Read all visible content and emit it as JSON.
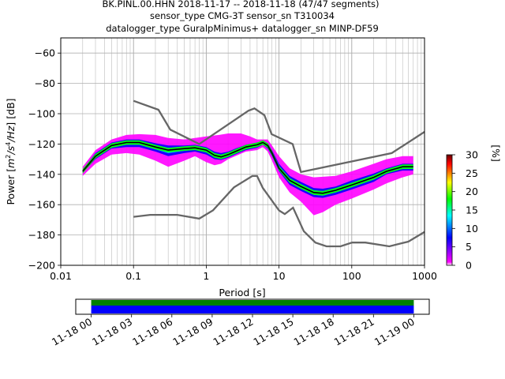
{
  "title_lines": [
    "BK.PINL.00.HHN   2018-11-17 -- 2018-11-18  (47/47 segments)",
    "sensor_type CMG-3T sensor_sn T310034",
    "datalogger_type GuralpMinimus+ datalogger_sn MINP-DF59"
  ],
  "chart_data": {
    "type": "heatmap",
    "title": "BK.PINL.00.HHN   2018-11-17 -- 2018-11-18  (47/47 segments)",
    "xlabel": "Period [s]",
    "ylabel_parts": {
      "pre": "Power [",
      "m": "m",
      "e2": "2",
      "s": "/s",
      "e4": "4",
      "hz": "/Hz",
      "post": "] [dB]"
    },
    "x_scale": "log",
    "xlim": [
      0.01,
      1000
    ],
    "ylim": [
      -200,
      -50
    ],
    "x_ticks": [
      {
        "v": 0.01,
        "label": "0.01"
      },
      {
        "v": 0.1,
        "label": "0.1"
      },
      {
        "v": 1,
        "label": "1"
      },
      {
        "v": 10,
        "label": "10"
      },
      {
        "v": 100,
        "label": "100"
      },
      {
        "v": 1000,
        "label": "1000"
      }
    ],
    "y_ticks": [
      {
        "v": -60,
        "label": "−60"
      },
      {
        "v": -80,
        "label": "−80"
      },
      {
        "v": -100,
        "label": "−100"
      },
      {
        "v": -120,
        "label": "−120"
      },
      {
        "v": -140,
        "label": "−140"
      },
      {
        "v": -160,
        "label": "−160"
      },
      {
        "v": -180,
        "label": "−180"
      },
      {
        "v": -200,
        "label": "−200"
      }
    ],
    "grid": true,
    "colorbar": {
      "label": "[%]",
      "range": [
        0,
        30
      ],
      "ticks": [
        {
          "v": 0,
          "label": "0"
        },
        {
          "v": 5,
          "label": "5"
        },
        {
          "v": 10,
          "label": "10"
        },
        {
          "v": 15,
          "label": "15"
        },
        {
          "v": 20,
          "label": "20"
        },
        {
          "v": 25,
          "label": "25"
        },
        {
          "v": 30,
          "label": "30"
        }
      ],
      "colors": [
        "#ffffff",
        "#ff00ff",
        "#0000ff",
        "#00ffff",
        "#00ff00",
        "#ffff00",
        "#ff0000",
        "#660000"
      ]
    },
    "noise_models": {
      "color": "#666666",
      "nhnm": [
        [
          0.1,
          -91.5
        ],
        [
          0.22,
          -97.4
        ],
        [
          0.32,
          -110.5
        ],
        [
          0.8,
          -120
        ],
        [
          3.8,
          -98
        ],
        [
          4.6,
          -96.5
        ],
        [
          6.3,
          -101
        ],
        [
          7.9,
          -113.5
        ],
        [
          15.4,
          -120
        ],
        [
          20,
          -138.5
        ],
        [
          354.8,
          -126
        ],
        [
          1000,
          -112
        ]
      ],
      "nlnm": [
        [
          0.1,
          -168
        ],
        [
          0.17,
          -166.7
        ],
        [
          0.4,
          -166.7
        ],
        [
          0.8,
          -169.2
        ],
        [
          1.24,
          -163.7
        ],
        [
          2.4,
          -148.6
        ],
        [
          4.3,
          -141.1
        ],
        [
          5,
          -141.1
        ],
        [
          6,
          -149
        ],
        [
          10,
          -163.8
        ],
        [
          12,
          -166.2
        ],
        [
          15.6,
          -162
        ],
        [
          21.9,
          -177.5
        ],
        [
          31.6,
          -185
        ],
        [
          45,
          -187.5
        ],
        [
          70,
          -187.5
        ],
        [
          101,
          -185
        ],
        [
          154,
          -185
        ],
        [
          328,
          -187.5
        ],
        [
          600,
          -184.4
        ],
        [
          1000,
          -178
        ]
      ]
    },
    "psd_mode": {
      "color": "#000000",
      "points": [
        [
          0.02,
          -138
        ],
        [
          0.03,
          -128
        ],
        [
          0.05,
          -121
        ],
        [
          0.08,
          -119
        ],
        [
          0.12,
          -119
        ],
        [
          0.2,
          -122
        ],
        [
          0.3,
          -124
        ],
        [
          0.5,
          -123
        ],
        [
          0.7,
          -122.5
        ],
        [
          1.0,
          -124
        ],
        [
          1.3,
          -127.5
        ],
        [
          1.6,
          -128.5
        ],
        [
          2.0,
          -127
        ],
        [
          2.5,
          -125
        ],
        [
          3.5,
          -122
        ],
        [
          5,
          -120.5
        ],
        [
          6,
          -119
        ],
        [
          7,
          -121
        ],
        [
          8,
          -126
        ],
        [
          10,
          -136
        ],
        [
          14,
          -144
        ],
        [
          20,
          -148
        ],
        [
          30,
          -152
        ],
        [
          40,
          -152.5
        ],
        [
          60,
          -150.5
        ],
        [
          100,
          -147
        ],
        [
          200,
          -142
        ],
        [
          300,
          -138
        ],
        [
          500,
          -135
        ],
        [
          700,
          -135
        ]
      ]
    },
    "density": {
      "upper_envelope": [
        [
          0.02,
          -135
        ],
        [
          0.03,
          -124
        ],
        [
          0.05,
          -117
        ],
        [
          0.08,
          -114
        ],
        [
          0.12,
          -113.5
        ],
        [
          0.2,
          -114
        ],
        [
          0.3,
          -116
        ],
        [
          0.5,
          -117
        ],
        [
          0.7,
          -116
        ],
        [
          1.0,
          -115
        ],
        [
          1.5,
          -114
        ],
        [
          2.0,
          -113
        ],
        [
          3,
          -113
        ],
        [
          4,
          -115
        ],
        [
          5,
          -117
        ],
        [
          6,
          -117
        ],
        [
          7,
          -117
        ],
        [
          8,
          -121
        ],
        [
          10,
          -128
        ],
        [
          14,
          -136
        ],
        [
          20,
          -140
        ],
        [
          30,
          -142
        ],
        [
          60,
          -141
        ],
        [
          100,
          -138
        ],
        [
          200,
          -133
        ],
        [
          300,
          -130
        ],
        [
          500,
          -128
        ],
        [
          700,
          -128
        ]
      ],
      "lower_envelope": [
        [
          0.02,
          -141
        ],
        [
          0.03,
          -133
        ],
        [
          0.05,
          -127
        ],
        [
          0.08,
          -126
        ],
        [
          0.12,
          -127
        ],
        [
          0.2,
          -131
        ],
        [
          0.3,
          -135
        ],
        [
          0.5,
          -131
        ],
        [
          0.7,
          -128
        ],
        [
          1.0,
          -132
        ],
        [
          1.3,
          -134
        ],
        [
          1.6,
          -133
        ],
        [
          2.0,
          -130
        ],
        [
          2.5,
          -128
        ],
        [
          3.5,
          -125
        ],
        [
          5,
          -124
        ],
        [
          6,
          -122
        ],
        [
          7,
          -125
        ],
        [
          8,
          -131
        ],
        [
          10,
          -142
        ],
        [
          14,
          -152
        ],
        [
          20,
          -158
        ],
        [
          30,
          -167
        ],
        [
          40,
          -165
        ],
        [
          60,
          -160
        ],
        [
          100,
          -156
        ],
        [
          200,
          -150
        ],
        [
          300,
          -146
        ],
        [
          500,
          -142
        ],
        [
          700,
          -140
        ]
      ],
      "mid_low_envelope": [
        [
          0.02,
          -139
        ],
        [
          0.03,
          -130
        ],
        [
          0.05,
          -123
        ],
        [
          0.08,
          -122
        ],
        [
          0.12,
          -122
        ],
        [
          0.2,
          -125
        ],
        [
          0.3,
          -128
        ],
        [
          0.5,
          -126
        ],
        [
          0.7,
          -125
        ],
        [
          1.0,
          -127
        ],
        [
          1.3,
          -130
        ],
        [
          1.6,
          -130.5
        ],
        [
          2.0,
          -129
        ],
        [
          2.5,
          -127
        ],
        [
          3.5,
          -124
        ],
        [
          5,
          -122.5
        ],
        [
          6,
          -120.5
        ],
        [
          7,
          -123
        ],
        [
          8,
          -128
        ],
        [
          10,
          -138
        ],
        [
          14,
          -147
        ],
        [
          20,
          -151
        ],
        [
          30,
          -155
        ],
        [
          40,
          -155.5
        ],
        [
          60,
          -153.5
        ],
        [
          100,
          -150
        ],
        [
          200,
          -145
        ],
        [
          300,
          -140
        ],
        [
          500,
          -137.5
        ],
        [
          700,
          -137.5
        ]
      ],
      "mid_high_envelope": [
        [
          0.02,
          -137
        ],
        [
          0.03,
          -126
        ],
        [
          0.05,
          -119
        ],
        [
          0.08,
          -117
        ],
        [
          0.12,
          -117
        ],
        [
          0.2,
          -119.5
        ],
        [
          0.3,
          -121
        ],
        [
          0.5,
          -121
        ],
        [
          0.7,
          -120.5
        ],
        [
          1.0,
          -122
        ],
        [
          1.3,
          -125
        ],
        [
          1.6,
          -126
        ],
        [
          2.0,
          -125
        ],
        [
          2.5,
          -123
        ],
        [
          3.5,
          -120.5
        ],
        [
          5,
          -119
        ],
        [
          6,
          -118
        ],
        [
          7,
          -119.5
        ],
        [
          8,
          -124
        ],
        [
          10,
          -133
        ],
        [
          14,
          -141
        ],
        [
          20,
          -145
        ],
        [
          30,
          -149
        ],
        [
          40,
          -149.5
        ],
        [
          60,
          -148
        ],
        [
          100,
          -144
        ],
        [
          200,
          -139.5
        ],
        [
          300,
          -136
        ],
        [
          500,
          -133
        ],
        [
          700,
          -133
        ]
      ]
    }
  },
  "timeline": {
    "start": "11-18 00",
    "end": "11-19 00",
    "tick_labels": [
      "11-18 00",
      "11-18 03",
      "11-18 06",
      "11-18 09",
      "11-18 12",
      "11-18 15",
      "11-18 18",
      "11-18 21",
      "11-19 00"
    ],
    "tick_hours": [
      0,
      3,
      6,
      9,
      12,
      15,
      18,
      21,
      24
    ],
    "data_coverage": {
      "start_hour": 0,
      "end_hour": 24,
      "color": "#0000ff"
    },
    "gap_free_coverage": {
      "start_hour": 0,
      "end_hour": 24,
      "color": "#008000"
    },
    "range_start_offset_hours": -1.15,
    "range_end_offset_hours": 1.15
  }
}
